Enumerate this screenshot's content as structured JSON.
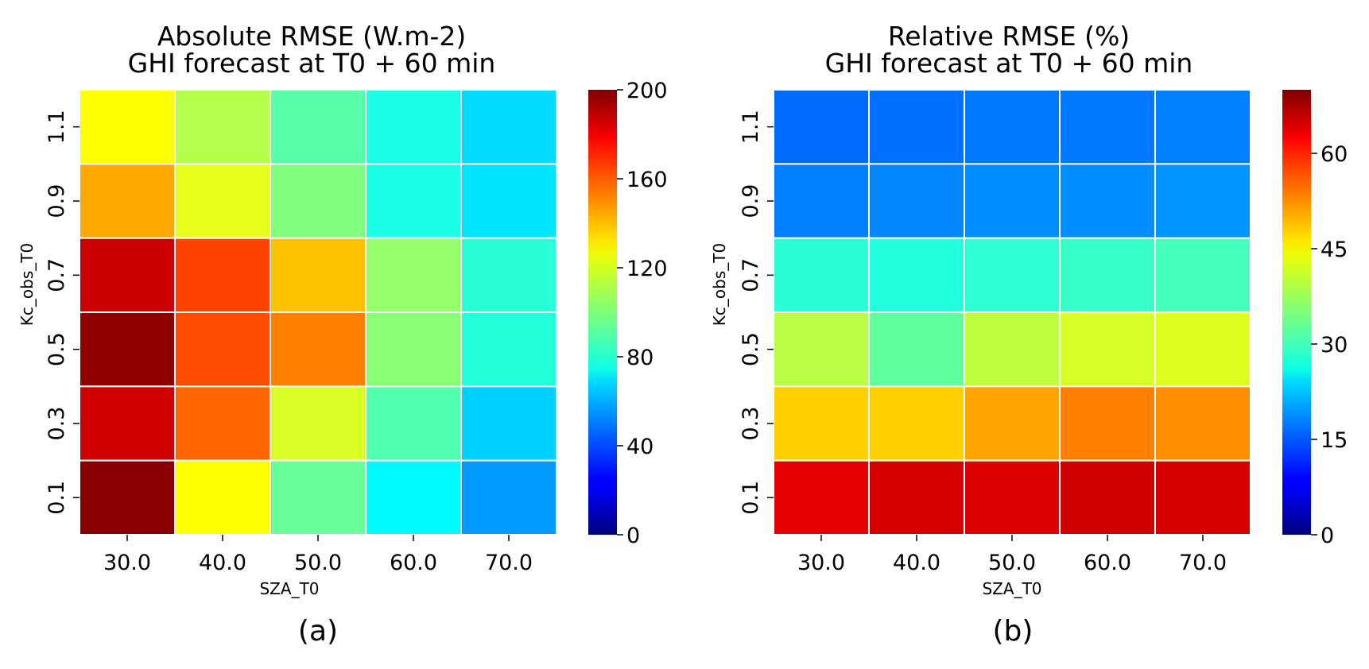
{
  "chart_data": [
    {
      "type": "heatmap",
      "title": "Absolute RMSE (W.m-2)",
      "subtitle": "GHI forecast at T0 + 60 min",
      "xlabel": "SZA_T0",
      "ylabel": "Kc_obs_T0",
      "x_categories": [
        "30.0",
        "40.0",
        "50.0",
        "60.0",
        "70.0"
      ],
      "y_categories": [
        "1.1",
        "0.9",
        "0.7",
        "0.5",
        "0.3",
        "0.1"
      ],
      "values": [
        [
          125,
          110,
          92,
          80,
          68
        ],
        [
          142,
          120,
          100,
          80,
          70
        ],
        [
          185,
          162,
          137,
          104,
          83
        ],
        [
          197,
          160,
          150,
          102,
          82
        ],
        [
          184,
          155,
          118,
          91,
          66
        ],
        [
          198,
          125,
          95,
          74,
          55
        ]
      ],
      "colorbar": {
        "min": 0,
        "max": 200,
        "ticks": [
          "0",
          "40",
          "80",
          "120",
          "160",
          "200"
        ],
        "tick_values": [
          0,
          40,
          80,
          120,
          160,
          200
        ],
        "colormap": "jet"
      },
      "caption": "(a)"
    },
    {
      "type": "heatmap",
      "title": "Relative RMSE (%)",
      "subtitle": "GHI forecast at T0 + 60 min",
      "xlabel": "SZA_T0",
      "ylabel": "Kc_obs_T0",
      "x_categories": [
        "30.0",
        "40.0",
        "50.0",
        "60.0",
        "70.0"
      ],
      "y_categories": [
        "1.1",
        "0.9",
        "0.7",
        "0.5",
        "0.3",
        "0.1"
      ],
      "values": [
        [
          16,
          16.5,
          17,
          17,
          17.5
        ],
        [
          17.5,
          18,
          18.5,
          18.5,
          19
        ],
        [
          29,
          28.5,
          29.5,
          30,
          31
        ],
        [
          39,
          33,
          39.5,
          41,
          41.5
        ],
        [
          47,
          47,
          50,
          52.5,
          51.5
        ],
        [
          63,
          64,
          63.5,
          64.5,
          64
        ]
      ],
      "colorbar": {
        "min": 0,
        "max": 70,
        "ticks": [
          "0",
          "15",
          "30",
          "45",
          "60"
        ],
        "tick_values": [
          0,
          15,
          30,
          45,
          60
        ],
        "colormap": "jet"
      },
      "caption": "(b)"
    }
  ]
}
